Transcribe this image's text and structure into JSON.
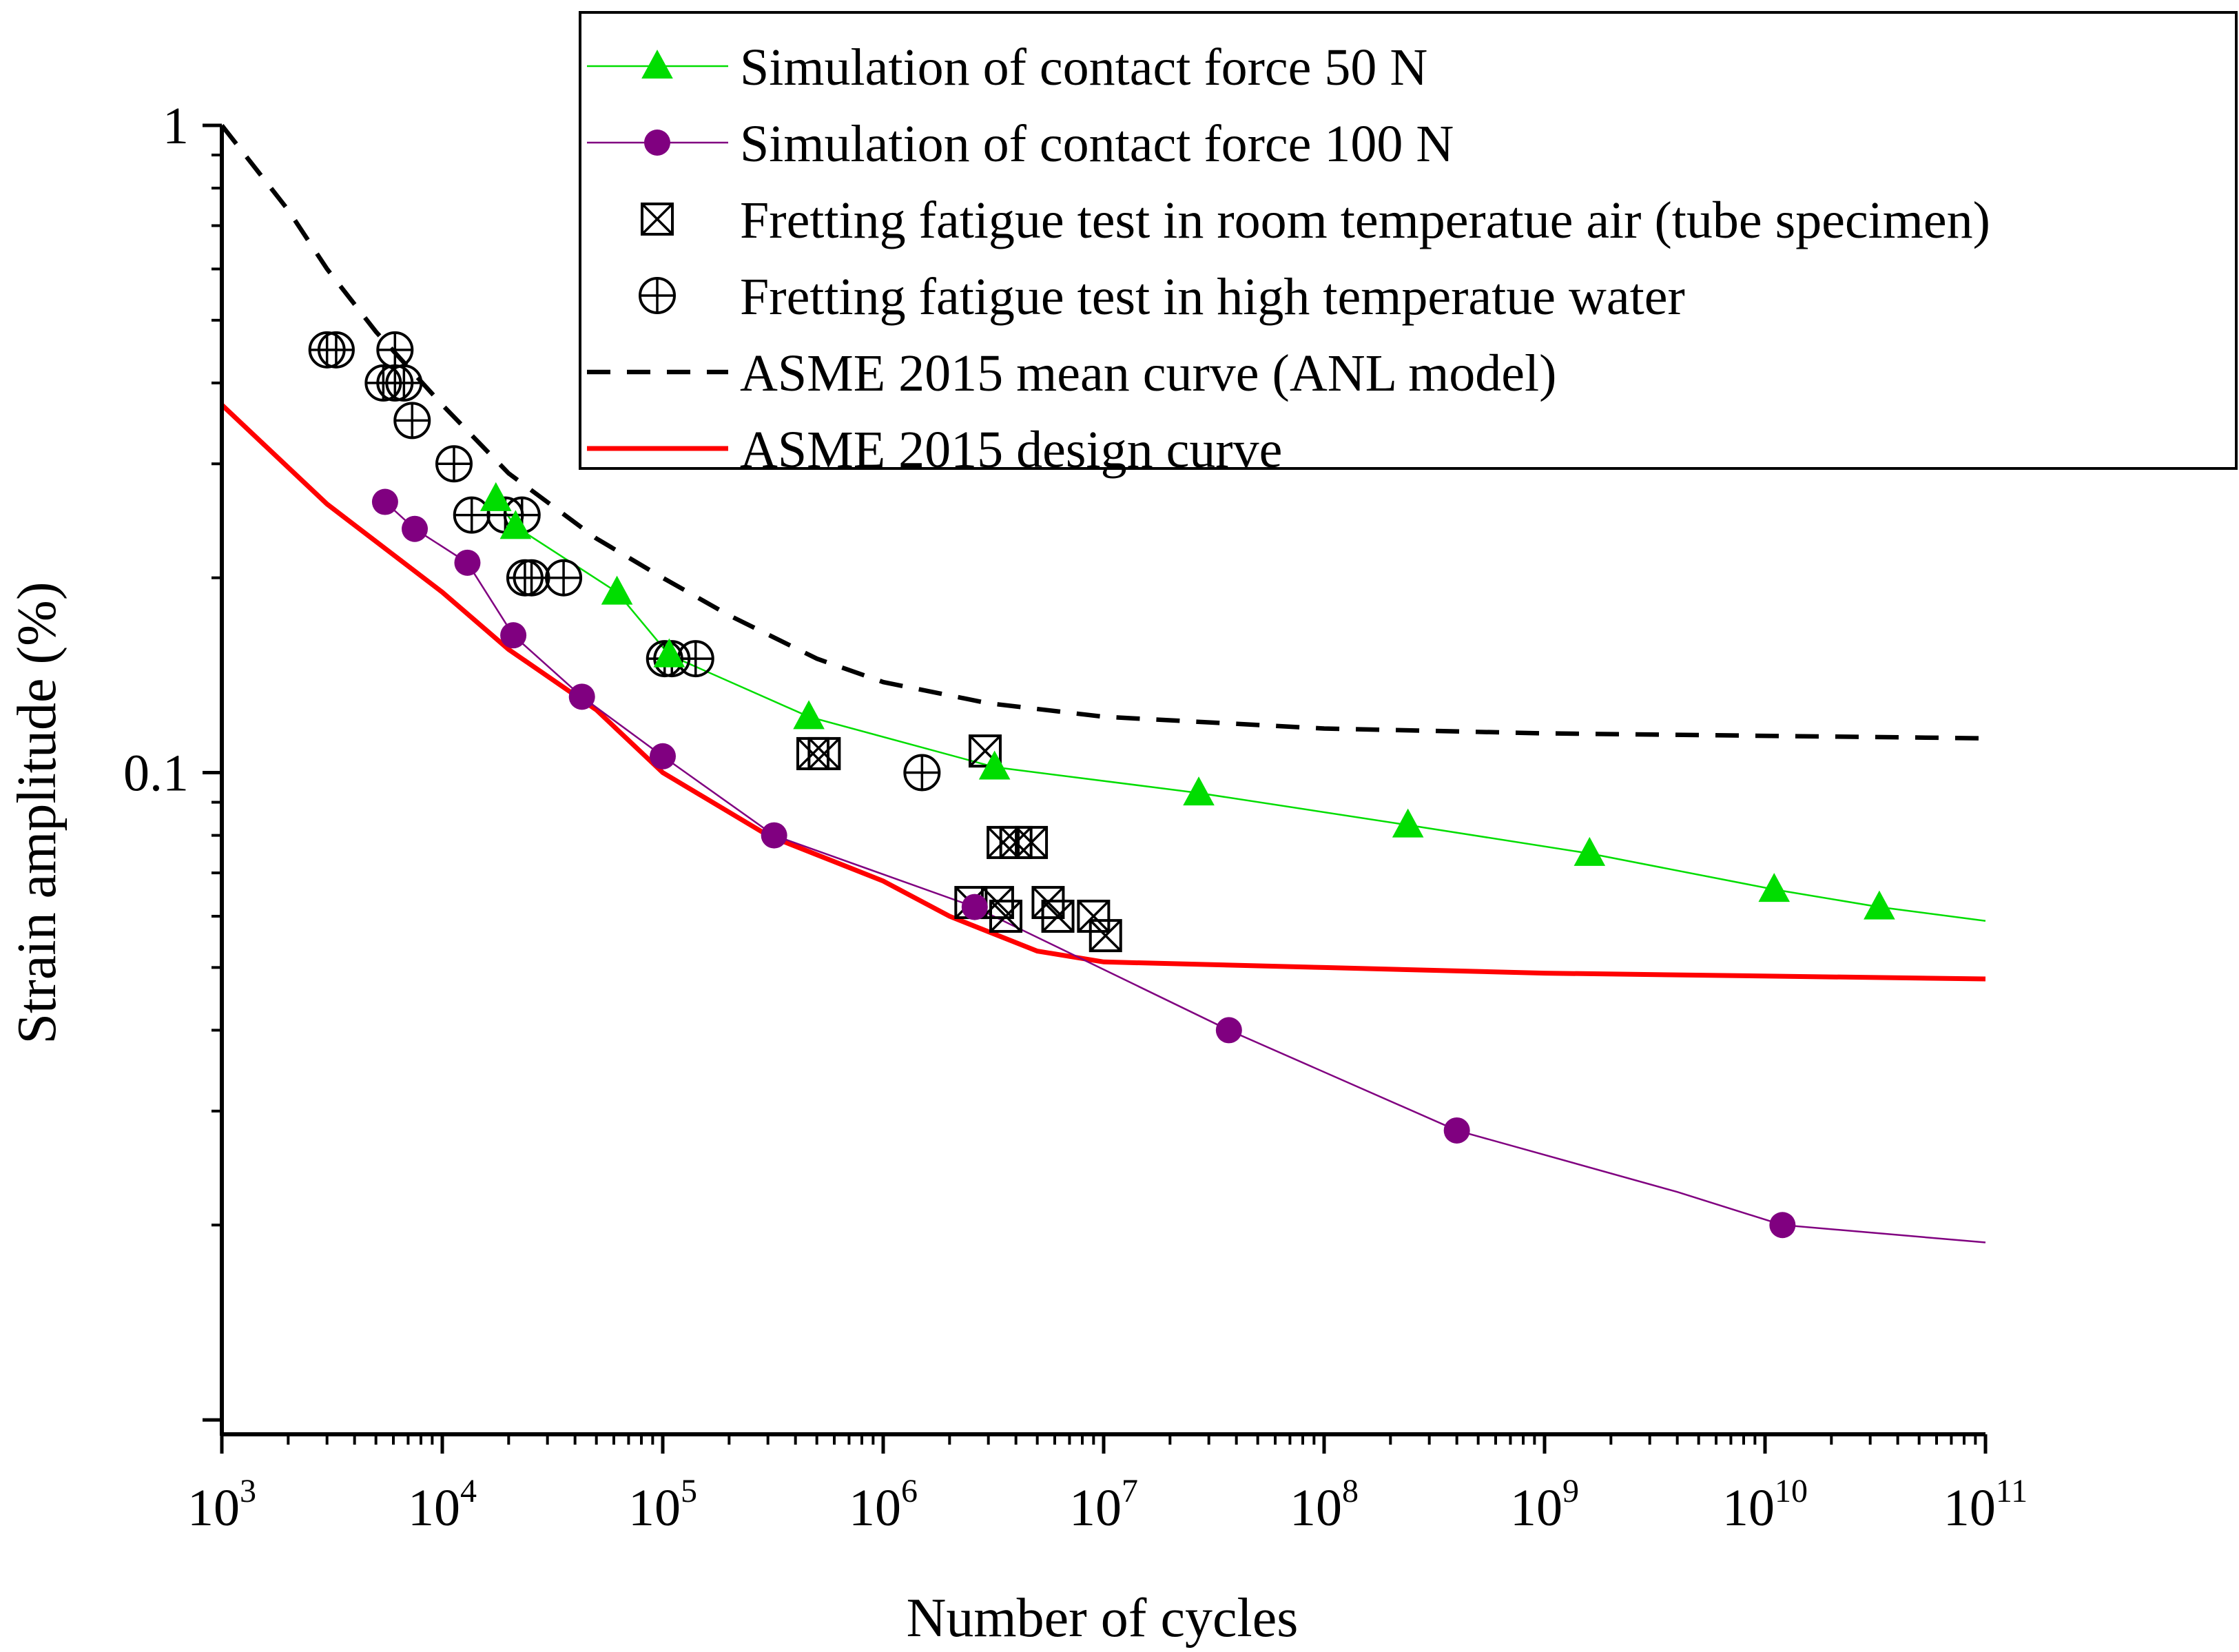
{
  "chart_data": {
    "type": "line",
    "xscale": "log",
    "yscale": "log",
    "xlabel": "Number of cycles",
    "ylabel": "Strain amplitude (%)",
    "xlim": [
      1000,
      100000000000
    ],
    "ylim": [
      0.0095,
      1.0
    ],
    "xticks": [
      {
        "value": 1000,
        "base": "10",
        "exp": "3"
      },
      {
        "value": 10000,
        "base": "10",
        "exp": "4"
      },
      {
        "value": 100000,
        "base": "10",
        "exp": "5"
      },
      {
        "value": 1000000,
        "base": "10",
        "exp": "6"
      },
      {
        "value": 10000000,
        "base": "10",
        "exp": "7"
      },
      {
        "value": 100000000,
        "base": "10",
        "exp": "8"
      },
      {
        "value": 1000000000,
        "base": "10",
        "exp": "9"
      },
      {
        "value": 10000000000,
        "base": "10",
        "exp": "10"
      },
      {
        "value": 100000000000,
        "base": "10",
        "exp": "11"
      }
    ],
    "yticks": [
      {
        "value": 1,
        "label": "1"
      },
      {
        "value": 0.1,
        "label": "0.1"
      }
    ],
    "legend_position": "top-right",
    "series": [
      {
        "name": "Simulation of contact force 50 N",
        "marker": "triangle",
        "color": "#00dd00",
        "points": [
          [
            17500,
            0.265
          ],
          [
            21500,
            0.24
          ],
          [
            62000,
            0.19
          ],
          [
            107000,
            0.152
          ],
          [
            460000,
            0.122
          ],
          [
            3200000,
            0.102
          ],
          [
            27000000,
            0.093
          ],
          [
            240000000,
            0.083
          ],
          [
            1600000000,
            0.075
          ],
          [
            11000000000,
            0.066
          ],
          [
            33000000000,
            0.062
          ]
        ],
        "line": [
          [
            17500,
            0.265
          ],
          [
            21500,
            0.24
          ],
          [
            62000,
            0.19
          ],
          [
            107000,
            0.152
          ],
          [
            460000,
            0.122
          ],
          [
            3200000,
            0.102
          ],
          [
            27000000,
            0.093
          ],
          [
            240000000,
            0.083
          ],
          [
            1600000000,
            0.075
          ],
          [
            11000000000,
            0.066
          ],
          [
            33000000000,
            0.062
          ],
          [
            100000000000,
            0.059
          ]
        ]
      },
      {
        "name": "Simulation of contact force 100 N",
        "marker": "circle",
        "color": "#800080",
        "points": [
          [
            5500,
            0.262
          ],
          [
            7500,
            0.238
          ],
          [
            13000,
            0.211
          ],
          [
            21000,
            0.163
          ],
          [
            43000,
            0.131
          ],
          [
            100000,
            0.106
          ],
          [
            320000,
            0.08
          ],
          [
            2600000,
            0.062
          ],
          [
            37000000,
            0.04
          ],
          [
            400000000,
            0.028
          ],
          [
            12000000000,
            0.02
          ]
        ],
        "line": [
          [
            5500,
            0.262
          ],
          [
            7500,
            0.238
          ],
          [
            13000,
            0.211
          ],
          [
            21000,
            0.163
          ],
          [
            43000,
            0.131
          ],
          [
            100000,
            0.106
          ],
          [
            320000,
            0.08
          ],
          [
            2600000,
            0.062
          ],
          [
            37000000,
            0.04
          ],
          [
            400000000,
            0.028
          ],
          [
            4000000000,
            0.0225
          ],
          [
            12000000000,
            0.02
          ],
          [
            100000000000,
            0.0188
          ]
        ]
      },
      {
        "name": "Fretting fatigue test in room temperatue air (tube specimen)",
        "marker": "square-x",
        "color": "#000000",
        "points": [
          [
            2900000,
            0.108
          ],
          [
            480000,
            0.107
          ],
          [
            540000,
            0.107
          ],
          [
            3500000,
            0.078
          ],
          [
            4000000,
            0.078
          ],
          [
            4700000,
            0.078
          ],
          [
            2500000,
            0.063
          ],
          [
            3300000,
            0.063
          ],
          [
            5600000,
            0.063
          ],
          [
            3600000,
            0.06
          ],
          [
            6200000,
            0.06
          ],
          [
            9000000,
            0.06
          ],
          [
            10200000,
            0.056
          ]
        ]
      },
      {
        "name": "Fretting fatigue test in high temperatue water",
        "marker": "circle-plus",
        "color": "#000000",
        "points": [
          [
            3000,
            0.45
          ],
          [
            3300,
            0.45
          ],
          [
            6100,
            0.45
          ],
          [
            5400,
            0.4
          ],
          [
            6100,
            0.4
          ],
          [
            6700,
            0.4
          ],
          [
            7300,
            0.35
          ],
          [
            11300,
            0.3
          ],
          [
            13600,
            0.25
          ],
          [
            19300,
            0.25
          ],
          [
            23000,
            0.25
          ],
          [
            23700,
            0.2
          ],
          [
            25400,
            0.2
          ],
          [
            35500,
            0.2
          ],
          [
            102000,
            0.15
          ],
          [
            110000,
            0.15
          ],
          [
            141000,
            0.15
          ],
          [
            1500000,
            0.1
          ]
        ]
      },
      {
        "name": "ASME 2015 mean curve (ANL model)",
        "style": "dashed",
        "color": "#000000",
        "line": [
          [
            1000,
            1.0
          ],
          [
            2000,
            0.74
          ],
          [
            3000,
            0.6
          ],
          [
            5000,
            0.48
          ],
          [
            10000,
            0.37
          ],
          [
            20000,
            0.29
          ],
          [
            50000,
            0.23
          ],
          [
            100000,
            0.2
          ],
          [
            200000,
            0.175
          ],
          [
            500000,
            0.15
          ],
          [
            1000000,
            0.138
          ],
          [
            3000000,
            0.128
          ],
          [
            10000000,
            0.122
          ],
          [
            100000000,
            0.117
          ],
          [
            1000000000,
            0.115
          ],
          [
            100000000000,
            0.113
          ]
        ]
      },
      {
        "name": "ASME 2015 design curve",
        "style": "solid",
        "color": "#ff0000",
        "line": [
          [
            1000,
            0.37
          ],
          [
            3000,
            0.26
          ],
          [
            10000,
            0.19
          ],
          [
            20000,
            0.155
          ],
          [
            50000,
            0.125
          ],
          [
            100000,
            0.1
          ],
          [
            300000,
            0.08
          ],
          [
            1000000,
            0.068
          ],
          [
            2000000,
            0.06
          ],
          [
            5000000,
            0.053
          ],
          [
            10000000,
            0.051
          ],
          [
            100000000,
            0.05
          ],
          [
            1000000000,
            0.049
          ],
          [
            100000000000,
            0.048
          ]
        ]
      }
    ]
  }
}
